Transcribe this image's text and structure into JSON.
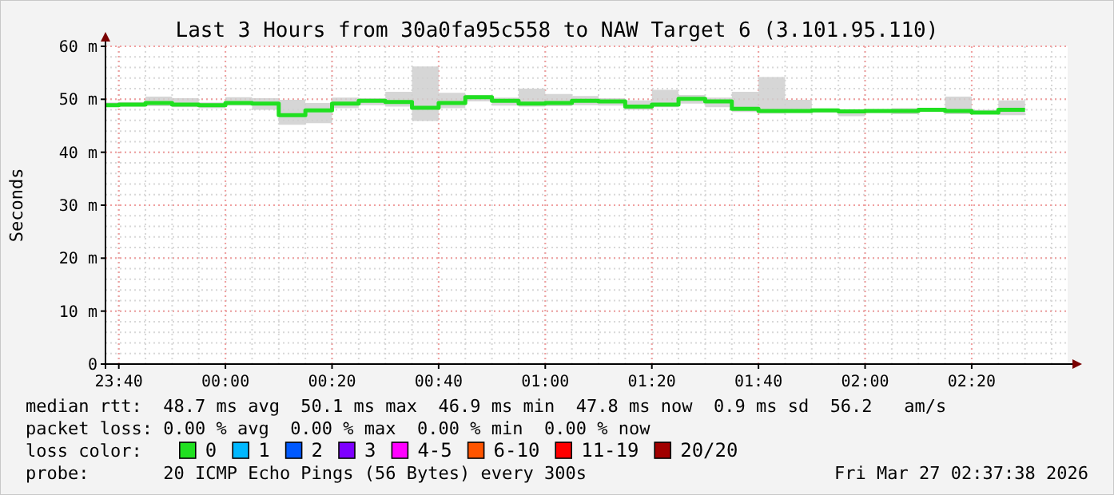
{
  "chart_data": {
    "type": "step",
    "title": "Last 3 Hours from 30a0fa95c558 to NAW Target 6 (3.101.95.110)",
    "ylabel": "Seconds",
    "x": [
      "2026-03-26T23:37:30",
      "2026-03-26T23:40",
      "2026-03-26T23:45",
      "2026-03-26T23:50",
      "2026-03-26T23:55",
      "2026-03-27T00:00",
      "2026-03-27T00:05",
      "2026-03-27T00:10",
      "2026-03-27T00:15",
      "2026-03-27T00:20",
      "2026-03-27T00:25",
      "2026-03-27T00:30",
      "2026-03-27T00:35",
      "2026-03-27T00:40",
      "2026-03-27T00:45",
      "2026-03-27T00:50",
      "2026-03-27T00:55",
      "2026-03-27T01:00",
      "2026-03-27T01:05",
      "2026-03-27T01:10",
      "2026-03-27T01:15",
      "2026-03-27T01:20",
      "2026-03-27T01:25",
      "2026-03-27T01:30",
      "2026-03-27T01:35",
      "2026-03-27T01:40",
      "2026-03-27T01:45",
      "2026-03-27T01:50",
      "2026-03-27T01:55",
      "2026-03-27T02:00",
      "2026-03-27T02:05",
      "2026-03-27T02:10",
      "2026-03-27T02:15",
      "2026-03-27T02:20",
      "2026-03-27T02:25",
      "2026-03-27T02:30"
    ],
    "series": [
      {
        "name": "0",
        "color": "#20e020",
        "values": [
          48.9,
          49.0,
          49.3,
          49.0,
          48.9,
          49.3,
          49.2,
          47.0,
          47.9,
          49.2,
          49.7,
          49.5,
          48.4,
          49.3,
          50.4,
          49.7,
          49.2,
          49.3,
          49.7,
          49.6,
          48.6,
          49.0,
          50.1,
          49.6,
          48.2,
          47.8,
          47.8,
          47.9,
          47.7,
          47.8,
          47.8,
          48.0,
          47.8,
          47.5,
          48.0,
          48.0
        ],
        "lower": [
          48.6,
          48.6,
          48.7,
          48.5,
          48.3,
          48.8,
          48.0,
          45.2,
          45.5,
          48.3,
          48.9,
          48.6,
          45.9,
          48.3,
          49.6,
          48.8,
          48.6,
          48.7,
          48.9,
          48.8,
          48.0,
          48.5,
          49.2,
          48.5,
          47.6,
          47.3,
          47.4,
          47.5,
          46.8,
          47.4,
          47.2,
          47.8,
          47.2,
          47.3,
          47.0,
          47.0
        ],
        "upper": [
          49.4,
          49.5,
          50.5,
          50.2,
          49.4,
          50.4,
          50.2,
          49.9,
          49.3,
          50.3,
          50.2,
          51.4,
          56.2,
          51.2,
          50.8,
          50.3,
          52.0,
          51.0,
          50.6,
          50.2,
          49.8,
          51.8,
          50.8,
          50.3,
          51.4,
          54.2,
          49.9,
          48.2,
          48.0,
          48.0,
          48.3,
          48.4,
          50.5,
          48.0,
          49.8,
          49.8
        ]
      },
      {
        "name": "1",
        "color": "#00b8ff",
        "values": [
          null,
          null,
          null,
          null,
          null,
          null,
          null,
          null,
          null,
          null,
          null,
          null,
          null,
          null,
          null,
          null,
          null,
          null,
          null,
          null,
          null,
          null,
          null,
          null,
          null,
          null,
          null,
          null,
          null,
          null,
          null,
          null,
          null,
          null,
          null,
          null
        ]
      },
      {
        "name": "2",
        "color": "#0059ff",
        "values": [
          null,
          null,
          null,
          null,
          null,
          null,
          null,
          null,
          null,
          null,
          null,
          null,
          null,
          null,
          null,
          null,
          null,
          null,
          null,
          null,
          null,
          null,
          null,
          null,
          null,
          null,
          null,
          null,
          null,
          null,
          null,
          null,
          null,
          null,
          null,
          null
        ]
      },
      {
        "name": "3",
        "color": "#7e00ff",
        "values": [
          null,
          null,
          null,
          null,
          null,
          null,
          null,
          null,
          null,
          null,
          null,
          null,
          null,
          null,
          null,
          null,
          null,
          null,
          null,
          null,
          null,
          null,
          null,
          null,
          null,
          null,
          null,
          null,
          null,
          null,
          null,
          null,
          null,
          null,
          null,
          null
        ]
      },
      {
        "name": "4-5",
        "color": "#ff00ff",
        "values": [
          null,
          null,
          null,
          null,
          null,
          null,
          null,
          null,
          null,
          null,
          null,
          null,
          null,
          null,
          null,
          null,
          null,
          null,
          null,
          null,
          null,
          null,
          null,
          null,
          null,
          null,
          null,
          null,
          null,
          null,
          null,
          null,
          null,
          null,
          null,
          null
        ]
      },
      {
        "name": "6-10",
        "color": "#ff5500",
        "values": [
          null,
          null,
          null,
          null,
          null,
          null,
          null,
          null,
          null,
          null,
          null,
          null,
          null,
          null,
          null,
          null,
          null,
          null,
          null,
          null,
          null,
          null,
          null,
          null,
          null,
          null,
          null,
          null,
          null,
          null,
          null,
          null,
          null,
          null,
          null,
          null
        ]
      },
      {
        "name": "11-19",
        "color": "#ff0000",
        "values": [
          null,
          null,
          null,
          null,
          null,
          null,
          null,
          null,
          null,
          null,
          null,
          null,
          null,
          null,
          null,
          null,
          null,
          null,
          null,
          null,
          null,
          null,
          null,
          null,
          null,
          null,
          null,
          null,
          null,
          null,
          null,
          null,
          null,
          null,
          null,
          null
        ]
      },
      {
        "name": "20/20",
        "color": "#a10000",
        "values": [
          null,
          null,
          null,
          null,
          null,
          null,
          null,
          null,
          null,
          null,
          null,
          null,
          null,
          null,
          null,
          null,
          null,
          null,
          null,
          null,
          null,
          null,
          null,
          null,
          null,
          null,
          null,
          null,
          null,
          null,
          null,
          null,
          null,
          null,
          null,
          null
        ]
      }
    ],
    "xlim": [
      "2026-03-26T23:37:30",
      "2026-03-27T02:38"
    ],
    "xticks": [
      {
        "value": "2026-03-26T23:40",
        "label": "23:40"
      },
      {
        "value": "2026-03-27T00:00",
        "label": "00:00"
      },
      {
        "value": "2026-03-27T00:20",
        "label": "00:20"
      },
      {
        "value": "2026-03-27T00:40",
        "label": "00:40"
      },
      {
        "value": "2026-03-27T01:00",
        "label": "01:00"
      },
      {
        "value": "2026-03-27T01:20",
        "label": "01:20"
      },
      {
        "value": "2026-03-27T01:40",
        "label": "01:40"
      },
      {
        "value": "2026-03-27T02:00",
        "label": "02:00"
      },
      {
        "value": "2026-03-27T02:20",
        "label": "02:20"
      }
    ],
    "ylim": [
      0,
      60
    ],
    "yticks": [
      {
        "value": 0,
        "label": "0"
      },
      {
        "value": 10,
        "label": "10 m"
      },
      {
        "value": 20,
        "label": "20 m"
      },
      {
        "value": 30,
        "label": "30 m"
      },
      {
        "value": 40,
        "label": "40 m"
      },
      {
        "value": 50,
        "label": "50 m"
      },
      {
        "value": 60,
        "label": "60 m"
      }
    ],
    "grid": true,
    "legend": "bottom",
    "annotations": [
      "median rtt:  48.7 ms avg  50.1 ms max  46.9 ms min  47.8 ms now  0.9 ms sd  56.2   am/s",
      "packet loss: 0.00 % avg  0.00 % max  0.00 % min  0.00 % now",
      "loss color:",
      "probe:       20 ICMP Echo Pings (56 Bytes) every 300s",
      "Fri Mar 27 02:37:38 2026"
    ]
  }
}
